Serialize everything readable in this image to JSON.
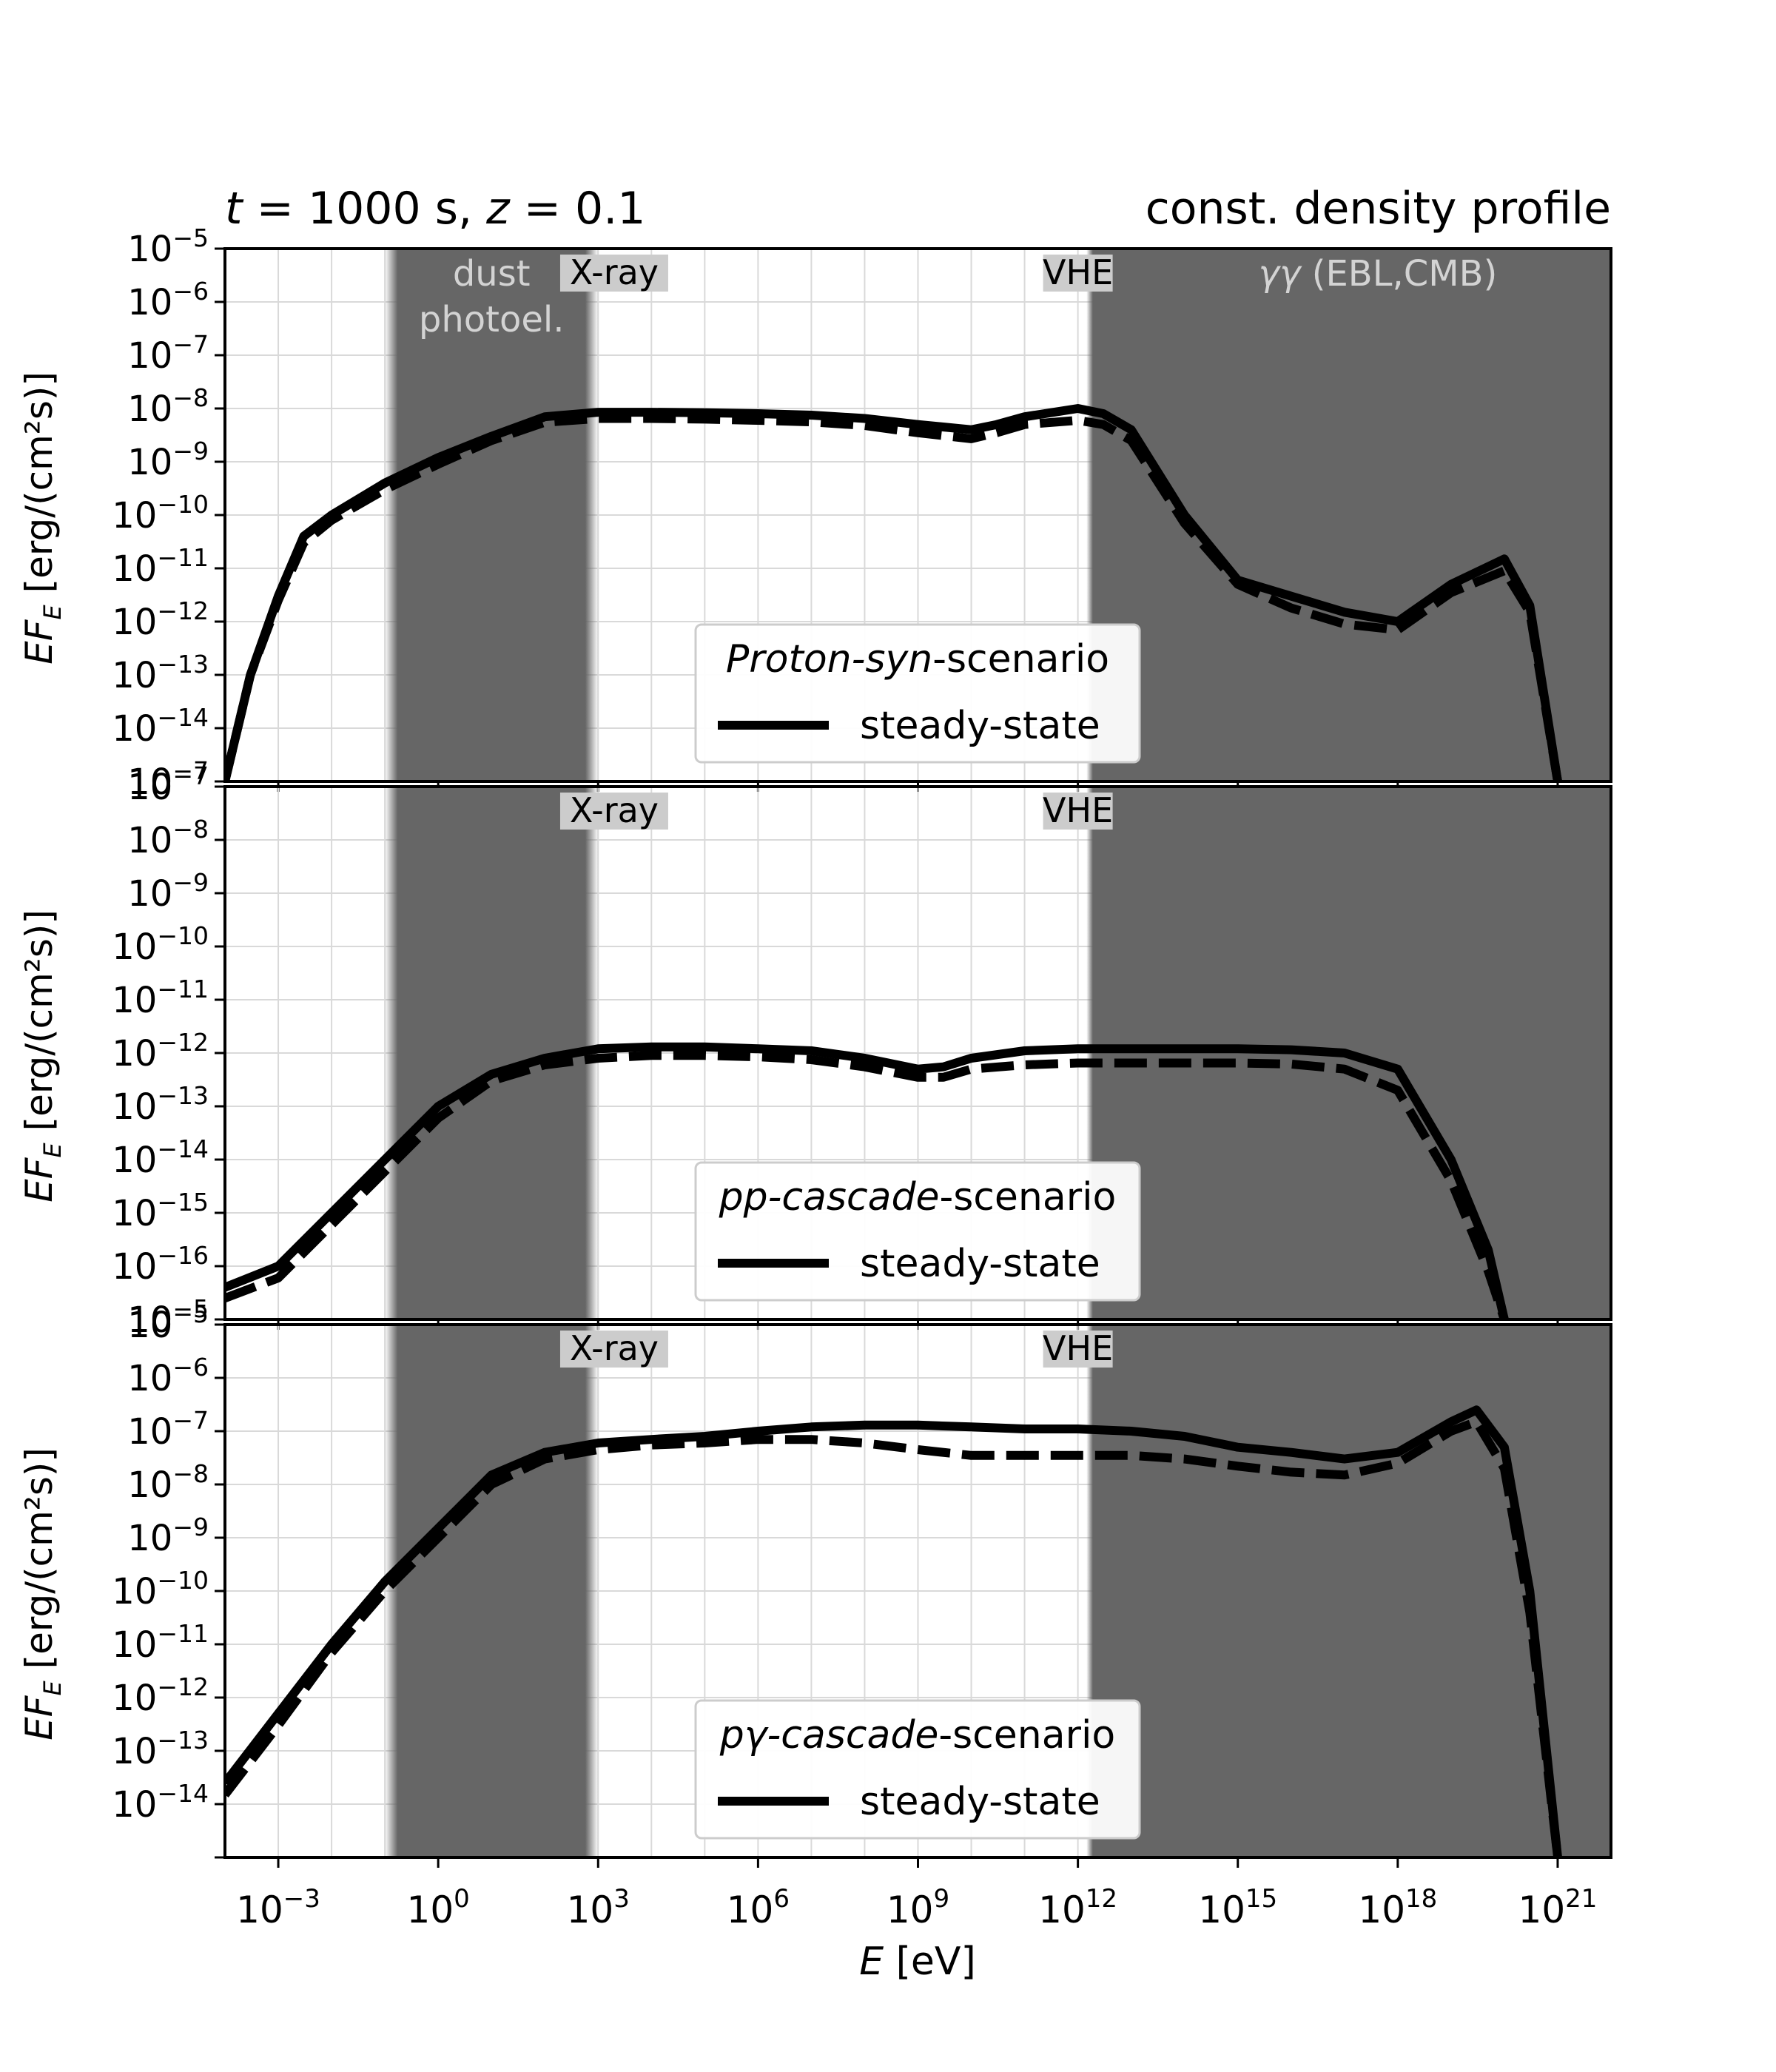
{
  "figure": {
    "title_left_parts": [
      "t",
      " = 1000 s, ",
      "z",
      " = 0.1"
    ],
    "title_right": "const. density profile",
    "xlabel_var": "E",
    "xlabel_unit": " [eV]",
    "ylabel_main": "EF",
    "ylabel_sub": "E",
    "ylabel_unit": " [erg/(cm²s)]"
  },
  "colors": {
    "band": "#666666",
    "band_label": "#d3d3d3",
    "region_label_bg": "#cccccc",
    "line": "#000000",
    "grid": "#d9d9d9"
  },
  "regions": {
    "dust": {
      "label_lines": [
        "dust",
        "photoel."
      ],
      "from": 0.1,
      "to": 1000
    },
    "xray_label": "X-ray",
    "xray_pos": 2000,
    "vhe_label": "VHE",
    "vhe_pos": 1000000000000.0,
    "gg": {
      "label_greek": "γγ",
      "label_rest": " (EBL,CMB)",
      "from": 2000000000000.0,
      "to": 1e+22
    }
  },
  "chart_data": [
    {
      "type": "line",
      "scenario_italic": "Proton-syn",
      "scenario_rest": "-scenario",
      "legend_entry": "steady-state",
      "xscale": "log",
      "yscale": "log",
      "xlim": [
        0.0001,
        1e+22
      ],
      "ylim": [
        1e-15,
        1e-05
      ],
      "ytick_labels": [
        "10^-5",
        "10^-6",
        "10^-7",
        "10^-8",
        "10^-9",
        "10^-10",
        "10^-11",
        "10^-12",
        "10^-13",
        "10^-14"
      ],
      "bottom_tick_label": "10^-7",
      "show_dust_label": true,
      "show_gg_label": true,
      "series": [
        {
          "style": "solid",
          "x": [
            0.0001,
            0.0003,
            0.001,
            0.003,
            0.01,
            0.1,
            1,
            10,
            100,
            1000,
            10000.0,
            100000.0,
            1000000.0,
            10000000.0,
            100000000.0,
            1000000000.0,
            10000000000.0,
            30000000000.0,
            100000000000.0,
            1000000000000.0,
            3000000000000.0,
            10000000000000.0,
            100000000000000.0,
            1000000000000000.0,
            1e+16,
            1e+17,
            1e+18,
            1e+19,
            1e+20,
            3e+20,
            1e+21
          ],
          "y": [
            1e-15,
            1e-13,
            3e-12,
            4e-11,
            1e-10,
            4e-10,
            1.2e-09,
            3e-09,
            7e-09,
            8.5e-09,
            8.5e-09,
            8.3e-09,
            8e-09,
            7.5e-09,
            6.5e-09,
            5e-09,
            4e-09,
            5e-09,
            7e-09,
            1e-08,
            8e-09,
            4e-09,
            1e-10,
            6e-12,
            3e-12,
            1.5e-12,
            1e-12,
            5e-12,
            1.5e-11,
            2e-12,
            1e-15
          ]
        },
        {
          "style": "dashed",
          "x": [
            0.0001,
            0.0003,
            0.001,
            0.003,
            0.01,
            0.1,
            1,
            10,
            100,
            1000,
            10000.0,
            100000.0,
            1000000.0,
            10000000.0,
            100000000.0,
            1000000000.0,
            10000000000.0,
            30000000000.0,
            100000000000.0,
            1000000000000.0,
            3000000000000.0,
            10000000000000.0,
            100000000000000.0,
            1000000000000000.0,
            1e+16,
            1e+17,
            1e+18,
            1e+19,
            1e+20,
            3e+20,
            1e+21
          ],
          "y": [
            1e-15,
            1e-13,
            2.5e-12,
            3e-11,
            8e-11,
            3e-10,
            9e-10,
            2.5e-09,
            5.5e-09,
            6.5e-09,
            6.5e-09,
            6.3e-09,
            6e-09,
            5.6e-09,
            4.8e-09,
            3.5e-09,
            2.7e-09,
            3.5e-09,
            5e-09,
            6e-09,
            5e-09,
            2.5e-09,
            7e-11,
            5e-12,
            1.8e-12,
            9e-13,
            7e-13,
            3.5e-12,
            9e-12,
            1.5e-12,
            1e-15
          ]
        }
      ]
    },
    {
      "type": "line",
      "scenario_italic": "pp-cascade",
      "scenario_rest": "-scenario",
      "legend_entry": "steady-state",
      "xscale": "log",
      "yscale": "log",
      "xlim": [
        0.0001,
        1e+22
      ],
      "ylim": [
        1e-17,
        1e-07
      ],
      "ytick_labels": [
        "10^-7",
        "10^-8",
        "10^-9",
        "10^-10",
        "10^-11",
        "10^-12",
        "10^-13",
        "10^-14",
        "10^-15",
        "10^-16"
      ],
      "bottom_tick_label": "10^-5",
      "show_dust_label": false,
      "show_gg_label": false,
      "series": [
        {
          "style": "solid",
          "x": [
            0.0001,
            0.001,
            0.01,
            0.1,
            1,
            10,
            100,
            1000,
            10000.0,
            100000.0,
            1000000.0,
            10000000.0,
            100000000.0,
            1000000000.0,
            3000000000.0,
            10000000000.0,
            100000000000.0,
            1000000000000.0,
            10000000000000.0,
            100000000000000.0,
            1000000000000000.0,
            1e+16,
            1e+17,
            1e+18,
            1e+19,
            5e+19,
            1e+20
          ],
          "y": [
            4e-17,
            1e-16,
            1e-15,
            1e-14,
            1e-13,
            4e-13,
            8e-13,
            1.2e-12,
            1.3e-12,
            1.3e-12,
            1.2e-12,
            1.1e-12,
            8e-13,
            5e-13,
            5.5e-13,
            8e-13,
            1.1e-12,
            1.2e-12,
            1.2e-12,
            1.2e-12,
            1.2e-12,
            1.15e-12,
            1e-12,
            5e-13,
            1e-14,
            2e-16,
            1e-17
          ]
        },
        {
          "style": "dashed",
          "x": [
            0.0001,
            0.001,
            0.01,
            0.1,
            1,
            10,
            100,
            1000,
            10000.0,
            100000.0,
            1000000.0,
            10000000.0,
            100000000.0,
            1000000000.0,
            3000000000.0,
            10000000000.0,
            100000000000.0,
            1000000000000.0,
            10000000000000.0,
            100000000000000.0,
            1000000000000000.0,
            1e+16,
            1e+17,
            1e+18,
            1e+19,
            5e+19,
            1e+20
          ],
          "y": [
            2.5e-17,
            6e-17,
            6e-16,
            6e-15,
            6e-14,
            3e-13,
            6e-13,
            8e-13,
            9e-13,
            9e-13,
            8.5e-13,
            7.5e-13,
            5.5e-13,
            3.5e-13,
            3.5e-13,
            5e-13,
            6e-13,
            6.5e-13,
            6.5e-13,
            6.5e-13,
            6.5e-13,
            6.2e-13,
            5e-13,
            2e-13,
            4e-15,
            8e-17,
            1e-17
          ]
        }
      ]
    },
    {
      "type": "line",
      "scenario_italic": "pγ-cascade",
      "scenario_rest": "-scenario",
      "legend_entry": "steady-state",
      "xscale": "log",
      "yscale": "log",
      "xlim": [
        0.0001,
        1e+22
      ],
      "ylim": [
        1e-15,
        1e-05
      ],
      "ytick_labels": [
        "10^-5",
        "10^-6",
        "10^-7",
        "10^-8",
        "10^-9",
        "10^-10",
        "10^-11",
        "10^-12",
        "10^-13",
        "10^-14"
      ],
      "bottom_tick_label": "",
      "show_dust_label": false,
      "show_gg_label": false,
      "series": [
        {
          "style": "solid",
          "x": [
            0.0001,
            0.001,
            0.01,
            0.1,
            1,
            10,
            100,
            1000,
            10000.0,
            100000.0,
            1000000.0,
            10000000.0,
            100000000.0,
            1000000000.0,
            10000000000.0,
            100000000000.0,
            1000000000000.0,
            10000000000000.0,
            100000000000000.0,
            1000000000000000.0,
            1e+16,
            1e+17,
            1e+18,
            1e+19,
            3e+19,
            1e+20,
            3e+20,
            1e+21
          ],
          "y": [
            2.5e-14,
            5e-13,
            1e-11,
            1.5e-10,
            1.5e-09,
            1.5e-08,
            4e-08,
            6e-08,
            7e-08,
            8e-08,
            1e-07,
            1.2e-07,
            1.3e-07,
            1.3e-07,
            1.2e-07,
            1.1e-07,
            1.1e-07,
            1e-07,
            8e-08,
            5e-08,
            4e-08,
            3e-08,
            4e-08,
            1.5e-07,
            2.5e-07,
            5e-08,
            1e-10,
            1e-15
          ]
        },
        {
          "style": "dashed",
          "x": [
            0.0001,
            0.001,
            0.01,
            0.1,
            1,
            10,
            100,
            1000,
            10000.0,
            100000.0,
            1000000.0,
            10000000.0,
            100000000.0,
            1000000000.0,
            10000000000.0,
            100000000000.0,
            1000000000000.0,
            10000000000000.0,
            100000000000000.0,
            1000000000000000.0,
            1e+16,
            1e+17,
            1e+18,
            1e+19,
            3e+19,
            1e+20,
            3e+20,
            1e+21
          ],
          "y": [
            1.5e-14,
            3e-13,
            7e-12,
            1e-10,
            1e-09,
            1e-08,
            3e-08,
            4.5e-08,
            5.5e-08,
            6e-08,
            7e-08,
            7e-08,
            6e-08,
            4.5e-08,
            3.5e-08,
            3.5e-08,
            3.5e-08,
            3.5e-08,
            3e-08,
            2.2e-08,
            1.7e-08,
            1.5e-08,
            2.5e-08,
            1e-07,
            1.5e-07,
            2e-08,
            4e-11,
            1e-15
          ]
        }
      ]
    }
  ],
  "xticks": {
    "values": [
      0.001,
      1,
      1000.0,
      1000000.0,
      1000000000.0,
      1000000000000.0,
      1000000000000000.0,
      1e+18,
      1e+21
    ],
    "labels": [
      "10^-3",
      "10^0",
      "10^3",
      "10^6",
      "10^9",
      "10^12",
      "10^15",
      "10^18",
      "10^21"
    ]
  }
}
